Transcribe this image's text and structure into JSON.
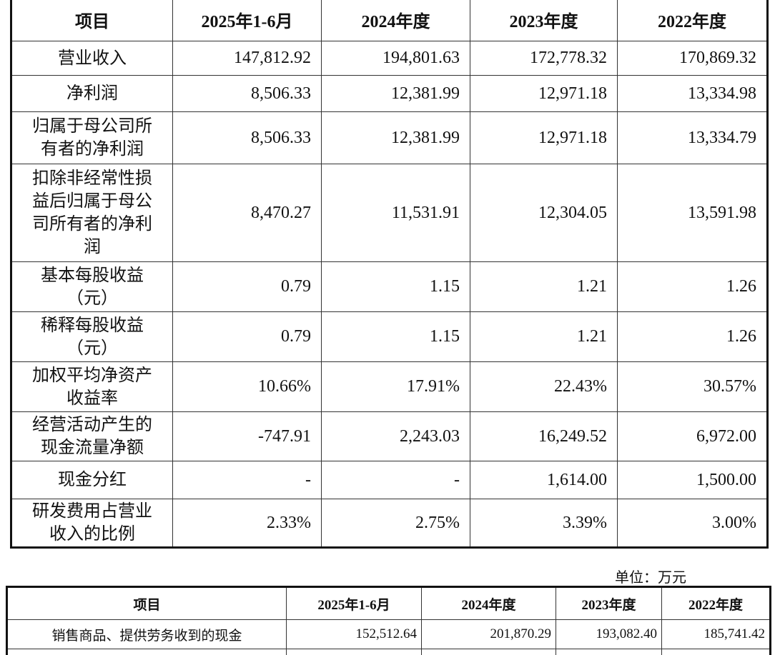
{
  "table1": {
    "headers": [
      "项目",
      "2025年1-6月",
      "2024年度",
      "2023年度",
      "2022年度"
    ],
    "rows": [
      {
        "label": "营业收入",
        "values": [
          "147,812.92",
          "194,801.63",
          "172,778.32",
          "170,869.32"
        ]
      },
      {
        "label": "净利润",
        "values": [
          "8,506.33",
          "12,381.99",
          "12,971.18",
          "13,334.98"
        ]
      },
      {
        "label": "归属于母公司所有者的净利润",
        "values": [
          "8,506.33",
          "12,381.99",
          "12,971.18",
          "13,334.79"
        ]
      },
      {
        "label": "扣除非经常性损益后归属于母公司所有者的净利润",
        "values": [
          "8,470.27",
          "11,531.91",
          "12,304.05",
          "13,591.98"
        ]
      },
      {
        "label": "基本每股收益（元）",
        "values": [
          "0.79",
          "1.15",
          "1.21",
          "1.26"
        ]
      },
      {
        "label": "稀释每股收益（元）",
        "values": [
          "0.79",
          "1.15",
          "1.21",
          "1.26"
        ]
      },
      {
        "label": "加权平均净资产收益率",
        "values": [
          "10.66%",
          "17.91%",
          "22.43%",
          "30.57%"
        ]
      },
      {
        "label": "经营活动产生的现金流量净额",
        "values": [
          "-747.91",
          "2,243.03",
          "16,249.52",
          "6,972.00"
        ]
      },
      {
        "label": "现金分红",
        "values": [
          "-",
          "-",
          "1,614.00",
          "1,500.00"
        ]
      },
      {
        "label": "研发费用占营业收入的比例",
        "values": [
          "2.33%",
          "2.75%",
          "3.39%",
          "3.00%"
        ]
      }
    ]
  },
  "unit_note": "单位：万元",
  "table2": {
    "headers": [
      "项目",
      "2025年1-6月",
      "2024年度",
      "2023年度",
      "2022年度"
    ],
    "rows": [
      {
        "label": "销售商品、提供劳务收到的现金",
        "values": [
          "152,512.64",
          "201,870.29",
          "193,082.40",
          "185,741.42"
        ]
      }
    ]
  }
}
